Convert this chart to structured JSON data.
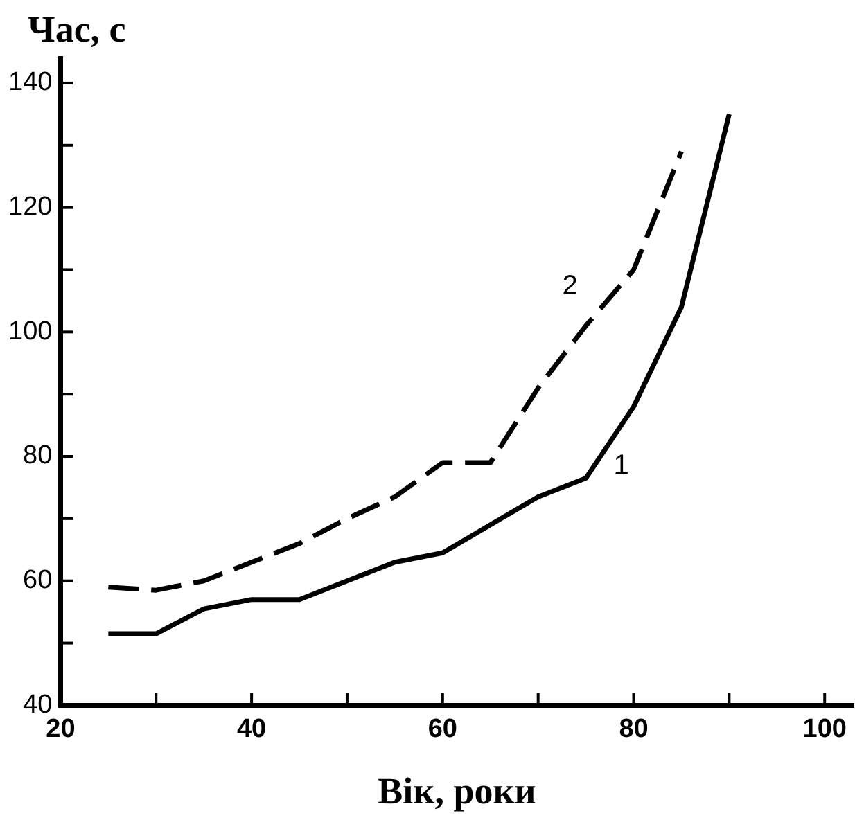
{
  "chart_data": {
    "type": "line",
    "ylabel": "Час, с",
    "xlabel": "Вік, роки",
    "xlim": [
      20,
      103
    ],
    "xticks": [
      20,
      {
        "value": 30,
        "label": null
      },
      40,
      {
        "value": 50,
        "label": null
      },
      60,
      {
        "value": 70,
        "label": null
      },
      80,
      {
        "value": 90,
        "label": null
      },
      100
    ],
    "ylim": [
      40,
      144
    ],
    "yticks": [
      40,
      {
        "value": 50,
        "label": null
      },
      60,
      {
        "value": 70,
        "label": null
      },
      80,
      {
        "value": 90,
        "label": null
      },
      100,
      {
        "value": 110,
        "label": null
      },
      120,
      {
        "value": 130,
        "label": null
      },
      140
    ],
    "marker": "none",
    "legend": false,
    "series": [
      {
        "name": "1",
        "color": "#000000",
        "line_style": "solid",
        "x": [
          25,
          30,
          35,
          40,
          45,
          50,
          55,
          60,
          65,
          70,
          75,
          80,
          85,
          90
        ],
        "values": [
          51.5,
          51.5,
          55.5,
          57,
          57,
          60,
          63,
          64.5,
          69,
          73.5,
          76.5,
          88,
          104,
          135
        ]
      },
      {
        "name": "2",
        "color": "#000000",
        "line_style": "dashed",
        "x": [
          25,
          30,
          35,
          40,
          45,
          50,
          55,
          60,
          65,
          70,
          75,
          80,
          85
        ],
        "values": [
          59,
          58.5,
          60,
          63,
          66,
          70,
          73.5,
          79,
          79,
          91,
          101,
          110,
          129
        ]
      }
    ]
  }
}
